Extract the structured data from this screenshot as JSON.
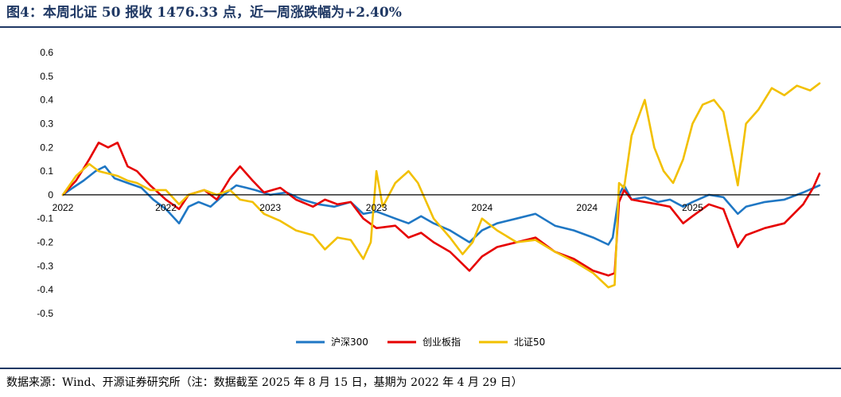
{
  "header": {
    "title": "图4：本周北证 50 报收 1476.33 点，近一周涨跌幅为+2.40%"
  },
  "footer": {
    "source": "数据来源：Wind、开源证券研究所（注：数据截至 2025 年 8 月 15 日，基期为 2022 年 4 月 29 日）"
  },
  "chart_data": {
    "type": "line",
    "title": "",
    "xlabel": "",
    "ylabel": "",
    "ylim": [
      -0.5,
      0.6
    ],
    "yticks": [
      "0.6",
      "0.5",
      "0.4",
      "0.3",
      "0.2",
      "0.1",
      "0",
      "-0.1",
      "-0.2",
      "-0.3",
      "-0.4",
      "-0.5"
    ],
    "xlim": [
      "2022-04-29",
      "2025-08-15"
    ],
    "xtick_labels": [
      "2022",
      "2022",
      "2023",
      "2023",
      "2024",
      "2024",
      "2025"
    ],
    "xtick_dates": [
      "2022-04-29",
      "2022-10-10",
      "2023-03-25",
      "2023-09-10",
      "2024-02-25",
      "2024-08-10",
      "2025-01-25"
    ],
    "legend_position": "bottom",
    "grid": false,
    "series": [
      {
        "name": "沪深300",
        "color": "#1f77c4",
        "points": [
          [
            "2022-04-29",
            0.0
          ],
          [
            "2022-05-15",
            0.03
          ],
          [
            "2022-06-01",
            0.06
          ],
          [
            "2022-06-20",
            0.1
          ],
          [
            "2022-07-05",
            0.12
          ],
          [
            "2022-07-20",
            0.07
          ],
          [
            "2022-08-10",
            0.05
          ],
          [
            "2022-09-01",
            0.03
          ],
          [
            "2022-09-20",
            -0.02
          ],
          [
            "2022-10-10",
            -0.06
          ],
          [
            "2022-10-31",
            -0.12
          ],
          [
            "2022-11-15",
            -0.05
          ],
          [
            "2022-12-01",
            -0.03
          ],
          [
            "2022-12-20",
            -0.05
          ],
          [
            "2023-01-10",
            0.0
          ],
          [
            "2023-01-30",
            0.04
          ],
          [
            "2023-02-15",
            0.03
          ],
          [
            "2023-03-01",
            0.02
          ],
          [
            "2023-03-25",
            0.0
          ],
          [
            "2023-04-20",
            0.01
          ],
          [
            "2023-05-15",
            -0.02
          ],
          [
            "2023-06-10",
            -0.04
          ],
          [
            "2023-07-05",
            -0.05
          ],
          [
            "2023-07-31",
            -0.03
          ],
          [
            "2023-08-20",
            -0.08
          ],
          [
            "2023-09-10",
            -0.07
          ],
          [
            "2023-10-10",
            -0.1
          ],
          [
            "2023-10-31",
            -0.12
          ],
          [
            "2023-11-20",
            -0.09
          ],
          [
            "2023-12-10",
            -0.12
          ],
          [
            "2024-01-05",
            -0.15
          ],
          [
            "2024-02-05",
            -0.2
          ],
          [
            "2024-02-25",
            -0.15
          ],
          [
            "2024-03-20",
            -0.12
          ],
          [
            "2024-04-20",
            -0.1
          ],
          [
            "2024-05-20",
            -0.08
          ],
          [
            "2024-06-20",
            -0.13
          ],
          [
            "2024-07-20",
            -0.15
          ],
          [
            "2024-08-20",
            -0.18
          ],
          [
            "2024-09-13",
            -0.21
          ],
          [
            "2024-09-20",
            -0.18
          ],
          [
            "2024-09-30",
            0.0
          ],
          [
            "2024-10-08",
            0.04
          ],
          [
            "2024-10-20",
            -0.02
          ],
          [
            "2024-11-10",
            -0.01
          ],
          [
            "2024-12-01",
            -0.03
          ],
          [
            "2024-12-20",
            -0.02
          ],
          [
            "2025-01-10",
            -0.05
          ],
          [
            "2025-01-25",
            -0.03
          ],
          [
            "2025-02-20",
            0.0
          ],
          [
            "2025-03-15",
            -0.01
          ],
          [
            "2025-04-07",
            -0.08
          ],
          [
            "2025-04-20",
            -0.05
          ],
          [
            "2025-05-20",
            -0.03
          ],
          [
            "2025-06-20",
            -0.02
          ],
          [
            "2025-07-20",
            0.01
          ],
          [
            "2025-08-15",
            0.04
          ]
        ]
      },
      {
        "name": "创业板指",
        "color": "#e60000",
        "points": [
          [
            "2022-04-29",
            0.0
          ],
          [
            "2022-05-20",
            0.06
          ],
          [
            "2022-06-10",
            0.15
          ],
          [
            "2022-06-25",
            0.22
          ],
          [
            "2022-07-10",
            0.2
          ],
          [
            "2022-07-25",
            0.22
          ],
          [
            "2022-08-10",
            0.12
          ],
          [
            "2022-08-25",
            0.1
          ],
          [
            "2022-09-15",
            0.04
          ],
          [
            "2022-10-10",
            -0.02
          ],
          [
            "2022-10-31",
            -0.06
          ],
          [
            "2022-11-15",
            0.0
          ],
          [
            "2022-12-10",
            0.02
          ],
          [
            "2022-12-30",
            -0.02
          ],
          [
            "2023-01-20",
            0.07
          ],
          [
            "2023-02-05",
            0.12
          ],
          [
            "2023-02-25",
            0.06
          ],
          [
            "2023-03-15",
            0.01
          ],
          [
            "2023-04-10",
            0.03
          ],
          [
            "2023-05-05",
            -0.02
          ],
          [
            "2023-06-01",
            -0.05
          ],
          [
            "2023-06-20",
            -0.02
          ],
          [
            "2023-07-10",
            -0.04
          ],
          [
            "2023-07-31",
            -0.03
          ],
          [
            "2023-08-20",
            -0.1
          ],
          [
            "2023-09-10",
            -0.14
          ],
          [
            "2023-10-10",
            -0.13
          ],
          [
            "2023-10-31",
            -0.18
          ],
          [
            "2023-11-20",
            -0.16
          ],
          [
            "2023-12-10",
            -0.2
          ],
          [
            "2024-01-05",
            -0.24
          ],
          [
            "2024-02-05",
            -0.32
          ],
          [
            "2024-02-25",
            -0.26
          ],
          [
            "2024-03-20",
            -0.22
          ],
          [
            "2024-04-20",
            -0.2
          ],
          [
            "2024-05-20",
            -0.18
          ],
          [
            "2024-06-20",
            -0.24
          ],
          [
            "2024-07-20",
            -0.27
          ],
          [
            "2024-08-20",
            -0.32
          ],
          [
            "2024-09-13",
            -0.34
          ],
          [
            "2024-09-23",
            -0.33
          ],
          [
            "2024-09-30",
            -0.03
          ],
          [
            "2024-10-08",
            0.02
          ],
          [
            "2024-10-20",
            -0.02
          ],
          [
            "2024-11-10",
            -0.03
          ],
          [
            "2024-12-01",
            -0.04
          ],
          [
            "2024-12-20",
            -0.05
          ],
          [
            "2025-01-10",
            -0.12
          ],
          [
            "2025-01-25",
            -0.09
          ],
          [
            "2025-02-20",
            -0.04
          ],
          [
            "2025-03-15",
            -0.06
          ],
          [
            "2025-04-07",
            -0.22
          ],
          [
            "2025-04-20",
            -0.17
          ],
          [
            "2025-05-20",
            -0.14
          ],
          [
            "2025-06-20",
            -0.12
          ],
          [
            "2025-07-20",
            -0.04
          ],
          [
            "2025-08-05",
            0.03
          ],
          [
            "2025-08-15",
            0.09
          ]
        ]
      },
      {
        "name": "北证50",
        "color": "#f2c000",
        "points": [
          [
            "2022-04-29",
            0.0
          ],
          [
            "2022-05-20",
            0.08
          ],
          [
            "2022-06-10",
            0.13
          ],
          [
            "2022-06-25",
            0.1
          ],
          [
            "2022-07-10",
            0.09
          ],
          [
            "2022-07-25",
            0.08
          ],
          [
            "2022-08-10",
            0.06
          ],
          [
            "2022-08-25",
            0.05
          ],
          [
            "2022-09-15",
            0.02
          ],
          [
            "2022-10-10",
            0.02
          ],
          [
            "2022-10-31",
            -0.04
          ],
          [
            "2022-11-15",
            0.0
          ],
          [
            "2022-12-10",
            0.02
          ],
          [
            "2022-12-30",
            0.0
          ],
          [
            "2023-01-20",
            0.02
          ],
          [
            "2023-02-05",
            -0.02
          ],
          [
            "2023-02-25",
            -0.03
          ],
          [
            "2023-03-15",
            -0.08
          ],
          [
            "2023-04-10",
            -0.11
          ],
          [
            "2023-05-05",
            -0.15
          ],
          [
            "2023-06-01",
            -0.17
          ],
          [
            "2023-06-20",
            -0.23
          ],
          [
            "2023-07-10",
            -0.18
          ],
          [
            "2023-07-31",
            -0.19
          ],
          [
            "2023-08-20",
            -0.27
          ],
          [
            "2023-09-01",
            -0.2
          ],
          [
            "2023-09-10",
            0.1
          ],
          [
            "2023-09-20",
            -0.05
          ],
          [
            "2023-10-10",
            0.05
          ],
          [
            "2023-10-31",
            0.1
          ],
          [
            "2023-11-15",
            0.05
          ],
          [
            "2023-12-10",
            -0.1
          ],
          [
            "2024-01-05",
            -0.18
          ],
          [
            "2024-01-25",
            -0.25
          ],
          [
            "2024-02-10",
            -0.2
          ],
          [
            "2024-02-25",
            -0.1
          ],
          [
            "2024-03-20",
            -0.15
          ],
          [
            "2024-04-20",
            -0.2
          ],
          [
            "2024-05-20",
            -0.19
          ],
          [
            "2024-06-20",
            -0.24
          ],
          [
            "2024-07-20",
            -0.28
          ],
          [
            "2024-08-20",
            -0.33
          ],
          [
            "2024-09-13",
            -0.39
          ],
          [
            "2024-09-23",
            -0.38
          ],
          [
            "2024-09-30",
            0.05
          ],
          [
            "2024-10-08",
            0.03
          ],
          [
            "2024-10-20",
            0.25
          ],
          [
            "2024-11-10",
            0.4
          ],
          [
            "2024-11-25",
            0.2
          ],
          [
            "2024-12-10",
            0.1
          ],
          [
            "2024-12-25",
            0.05
          ],
          [
            "2025-01-10",
            0.15
          ],
          [
            "2025-01-25",
            0.3
          ],
          [
            "2025-02-10",
            0.38
          ],
          [
            "2025-02-28",
            0.4
          ],
          [
            "2025-03-15",
            0.35
          ],
          [
            "2025-04-07",
            0.04
          ],
          [
            "2025-04-20",
            0.3
          ],
          [
            "2025-05-10",
            0.36
          ],
          [
            "2025-05-31",
            0.45
          ],
          [
            "2025-06-20",
            0.42
          ],
          [
            "2025-07-10",
            0.46
          ],
          [
            "2025-07-31",
            0.44
          ],
          [
            "2025-08-15",
            0.47
          ]
        ]
      }
    ]
  }
}
